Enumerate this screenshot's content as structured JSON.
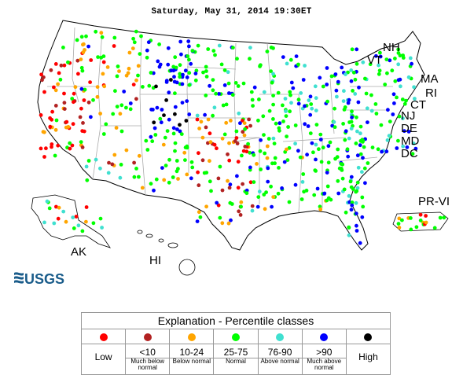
{
  "title": "Saturday, May 31, 2014 19:30ET",
  "colors": {
    "low": "#ff0000",
    "much_below": "#b22222",
    "below": "#ffa500",
    "normal": "#00ff00",
    "above": "#40e0d0",
    "much_above": "#0000ff",
    "high": "#000000",
    "state_lines": "#aaaaaa",
    "outline": "#000000"
  },
  "state_labels": [
    "NH",
    "VT",
    "MA",
    "RI",
    "CT",
    "NJ",
    "DE",
    "MD",
    "DC",
    "PR-VI",
    "AK",
    "HI"
  ],
  "logo_text": "USGS",
  "legend": {
    "title": "Explanation - Percentile classes",
    "classes": [
      {
        "key": "low",
        "range": "",
        "sub": "",
        "big": "Low",
        "color": "#ff0000"
      },
      {
        "key": "much_below",
        "range": "<10",
        "sub": "Much below normal",
        "big": "",
        "color": "#b22222"
      },
      {
        "key": "below",
        "range": "10-24",
        "sub": "Below normal",
        "big": "",
        "color": "#ffa500"
      },
      {
        "key": "normal",
        "range": "25-75",
        "sub": "Normal",
        "big": "",
        "color": "#00ff00"
      },
      {
        "key": "above",
        "range": "76-90",
        "sub": "Above normal",
        "big": "",
        "color": "#40e0d0"
      },
      {
        "key": "much_above",
        "range": ">90",
        "sub": "Much above normal",
        "big": "",
        "color": "#0000ff"
      },
      {
        "key": "high",
        "range": "",
        "sub": "",
        "big": "High",
        "color": "#000000"
      }
    ]
  }
}
